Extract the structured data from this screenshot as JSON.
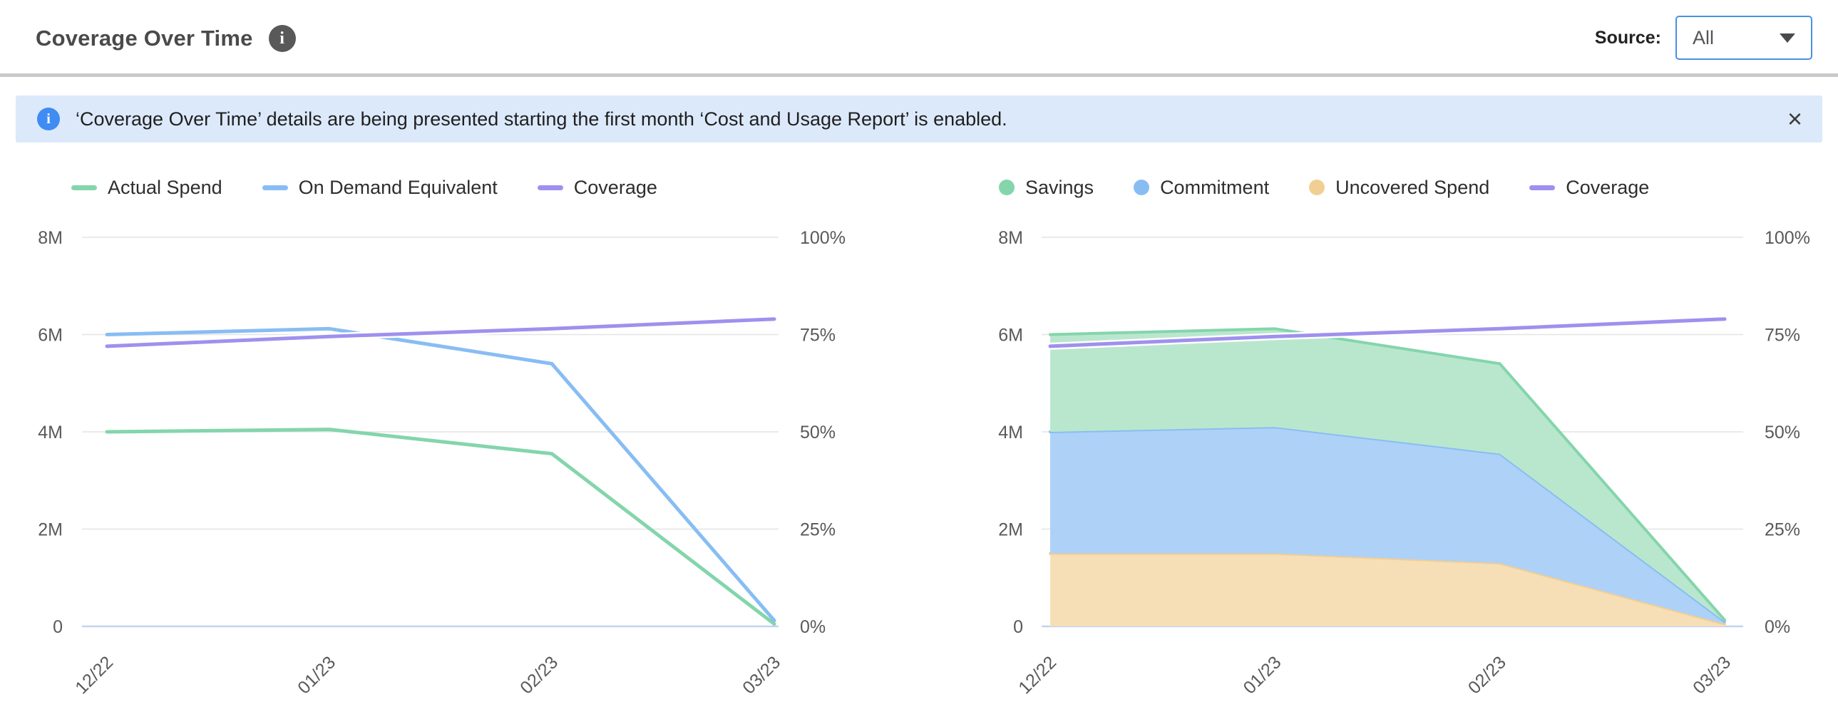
{
  "header": {
    "title": "Coverage Over Time",
    "info_icon": "i",
    "source_label": "Source:",
    "source_value": "All"
  },
  "banner": {
    "info_icon": "i",
    "text": "‘Coverage Over Time’ details are being presented starting the first month ‘Cost and Usage Report’ is enabled.",
    "close_label": "×"
  },
  "colors": {
    "green_line": "#84d5ab",
    "green_fill": "#b9e7cd",
    "blue_line": "#88bdf3",
    "blue_fill": "#aed1f8",
    "purple_line": "#9f90ee",
    "orange_line": "#f1cf92",
    "orange_fill": "#f6dfb6",
    "accent_blue": "#4a90e2",
    "banner_bg": "#dce9fb",
    "grid": "#e4e4e4",
    "axis_line": "#c3d2f2",
    "tick_text": "#595959"
  },
  "chart_data": [
    {
      "type": "line",
      "title": "Spend lines with coverage",
      "categories": [
        "12/22",
        "01/23",
        "02/23",
        "03/23"
      ],
      "grid": true,
      "legend_position": "top",
      "y_left": {
        "min": 0,
        "max": 8000000,
        "ticks": [
          "0",
          "2M",
          "4M",
          "6M",
          "8M"
        ]
      },
      "y_right": {
        "min": 0,
        "max": 100,
        "ticks": [
          "0%",
          "25%",
          "50%",
          "75%",
          "100%"
        ]
      },
      "series": [
        {
          "name": "Actual Spend",
          "marker": "dash",
          "axis": "left",
          "color": "#84d5ab",
          "values": [
            4000000,
            4050000,
            3550000,
            50000
          ]
        },
        {
          "name": "On Demand Equivalent",
          "marker": "dash",
          "axis": "left",
          "color": "#88bdf3",
          "values": [
            6000000,
            6120000,
            5400000,
            120000
          ]
        },
        {
          "name": "Coverage",
          "marker": "dash",
          "axis": "right",
          "color": "#9f90ee",
          "halo": true,
          "values": [
            72,
            74.5,
            76.5,
            79
          ]
        }
      ]
    },
    {
      "type": "area",
      "title": "Stacked spend composition with coverage",
      "categories": [
        "12/22",
        "01/23",
        "02/23",
        "03/23"
      ],
      "grid": true,
      "legend_position": "top",
      "stack_note": "Uncovered Spend bottom, Commitment middle, Savings top",
      "y_left": {
        "min": 0,
        "max": 8000000,
        "ticks": [
          "0",
          "2M",
          "4M",
          "6M",
          "8M"
        ]
      },
      "y_right": {
        "min": 0,
        "max": 100,
        "ticks": [
          "0%",
          "25%",
          "50%",
          "75%",
          "100%"
        ]
      },
      "series": [
        {
          "name": "Savings",
          "marker": "circle",
          "axis": "left",
          "stack": 2,
          "color": "#84d5ab",
          "fill": "#b9e7cd",
          "values": [
            2000000,
            2020000,
            1850000,
            30000
          ]
        },
        {
          "name": "Commitment",
          "marker": "circle",
          "axis": "left",
          "stack": 1,
          "color": "#88bdf3",
          "fill": "#aed1f8",
          "values": [
            2500000,
            2600000,
            2250000,
            50000
          ]
        },
        {
          "name": "Uncovered Spend",
          "marker": "circle",
          "axis": "left",
          "stack": 0,
          "color": "#f1cf92",
          "fill": "#f6dfb6",
          "values": [
            1500000,
            1500000,
            1300000,
            50000
          ]
        },
        {
          "name": "Coverage",
          "marker": "dash",
          "axis": "right",
          "color": "#9f90ee",
          "halo": true,
          "values": [
            72,
            74.5,
            76.5,
            79
          ]
        }
      ]
    }
  ]
}
